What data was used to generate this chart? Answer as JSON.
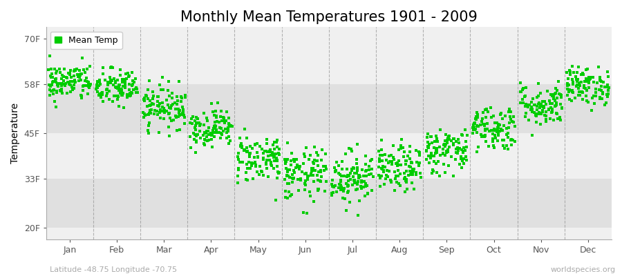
{
  "title": "Monthly Mean Temperatures 1901 - 2009",
  "ylabel": "Temperature",
  "ytick_labels": [
    "20F",
    "33F",
    "45F",
    "58F",
    "70F"
  ],
  "ytick_values": [
    20,
    33,
    45,
    58,
    70
  ],
  "ylim": [
    17,
    73
  ],
  "months": [
    "Jan",
    "Feb",
    "Mar",
    "Apr",
    "May",
    "Jun",
    "Jul",
    "Aug",
    "Sep",
    "Oct",
    "Nov",
    "Dec"
  ],
  "month_centers": [
    1,
    2,
    3,
    4,
    5,
    6,
    7,
    8,
    9,
    10,
    11,
    12
  ],
  "mean_temps_F": [
    58.5,
    57.0,
    52.0,
    46.5,
    38.5,
    34.0,
    33.5,
    35.5,
    40.5,
    46.5,
    52.5,
    57.5
  ],
  "spread": [
    2.5,
    2.5,
    2.8,
    2.5,
    3.2,
    3.5,
    3.5,
    3.0,
    3.0,
    3.0,
    2.8,
    2.5
  ],
  "n_years": 109,
  "dot_color": "#00cc00",
  "dot_size": 6,
  "bg_light": "#f0f0f0",
  "bg_dark": "#e0e0e0",
  "figure_background": "#ffffff",
  "grid_color": "#888888",
  "legend_label": "Mean Temp",
  "bottom_left_text": "Latitude -48.75 Longitude -70.75",
  "bottom_right_text": "worldspecies.org",
  "title_fontsize": 15,
  "axis_label_fontsize": 10,
  "tick_fontsize": 9,
  "annotation_fontsize": 8
}
